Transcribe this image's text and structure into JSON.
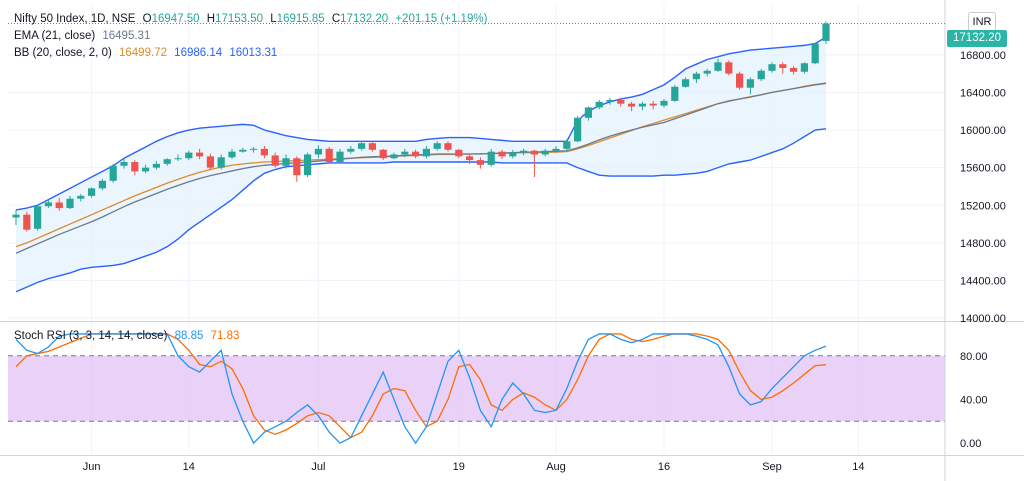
{
  "legend": {
    "symbol": "Nifty 50 Index, 1D, NSE",
    "open_label": "O",
    "open": "16947.50",
    "high_label": "H",
    "high": "17153.50",
    "low_label": "L",
    "low": "16915.85",
    "close_label": "C",
    "close": "17132.20",
    "change": "+201.15 (+1.19%)",
    "ema_label": "EMA (21, close)",
    "ema_value": "16495.31",
    "bb_label": "BB (20, close, 2, 0)",
    "bb_basis": "16499.72",
    "bb_upper": "16986.14",
    "bb_lower": "16013.31",
    "stoch_label": "Stoch RSI (3, 3, 14, 14, close)",
    "stoch_k": "88.85",
    "stoch_d": "71.83"
  },
  "currency": "INR",
  "last_price_tag": "17132.20",
  "colors": {
    "up": "#26a69a",
    "down": "#ef5350",
    "ema": "#6b7a8f",
    "bb_basis": "#e08a2c",
    "bb_bands": "#2962ff",
    "bb_fill": "#e3f2fd",
    "stoch_k": "#2196f3",
    "stoch_d": "#ff6d00",
    "stoch_band": "#e1c1f5"
  },
  "chart_data": [
    {
      "type": "candlestick",
      "title": "Nifty 50 Index, 1D, NSE",
      "x_ticks": [
        {
          "label": "Jun",
          "t": 7
        },
        {
          "label": "14",
          "t": 16
        },
        {
          "label": "Jul",
          "t": 28
        },
        {
          "label": "19",
          "t": 41
        },
        {
          "label": "Aug",
          "t": 50
        },
        {
          "label": "16",
          "t": 60
        },
        {
          "label": "Sep",
          "t": 70
        },
        {
          "label": "14",
          "t": 78
        }
      ],
      "y_ticks": [
        "14000.00",
        "14400.00",
        "14800.00",
        "15200.00",
        "15600.00",
        "16000.00",
        "16400.00",
        "16800.00"
      ],
      "ylim": [
        13980,
        17340
      ],
      "candles": [
        [
          15070,
          15150,
          14990,
          15100
        ],
        [
          15100,
          15130,
          14920,
          14940
        ],
        [
          14950,
          15210,
          14930,
          15190
        ],
        [
          15190,
          15260,
          15170,
          15230
        ],
        [
          15230,
          15280,
          15140,
          15170
        ],
        [
          15170,
          15300,
          15160,
          15270
        ],
        [
          15270,
          15320,
          15240,
          15300
        ],
        [
          15300,
          15390,
          15280,
          15380
        ],
        [
          15380,
          15480,
          15360,
          15460
        ],
        [
          15460,
          15640,
          15440,
          15620
        ],
        [
          15620,
          15700,
          15590,
          15660
        ],
        [
          15660,
          15680,
          15520,
          15560
        ],
        [
          15560,
          15630,
          15540,
          15600
        ],
        [
          15600,
          15670,
          15580,
          15640
        ],
        [
          15640,
          15700,
          15620,
          15690
        ],
        [
          15690,
          15740,
          15670,
          15700
        ],
        [
          15700,
          15780,
          15680,
          15760
        ],
        [
          15760,
          15800,
          15690,
          15720
        ],
        [
          15720,
          15750,
          15580,
          15600
        ],
        [
          15600,
          15740,
          15580,
          15710
        ],
        [
          15710,
          15800,
          15690,
          15770
        ],
        [
          15770,
          15810,
          15760,
          15790
        ],
        [
          15790,
          15820,
          15760,
          15800
        ],
        [
          15800,
          15830,
          15700,
          15730
        ],
        [
          15730,
          15760,
          15600,
          15620
        ],
        [
          15620,
          15740,
          15590,
          15700
        ],
        [
          15700,
          15720,
          15450,
          15520
        ],
        [
          15520,
          15760,
          15500,
          15740
        ],
        [
          15740,
          15840,
          15700,
          15800
        ],
        [
          15800,
          15820,
          15640,
          15660
        ],
        [
          15660,
          15800,
          15640,
          15770
        ],
        [
          15770,
          15830,
          15750,
          15800
        ],
        [
          15800,
          15880,
          15780,
          15860
        ],
        [
          15860,
          15870,
          15770,
          15790
        ],
        [
          15790,
          15800,
          15680,
          15700
        ],
        [
          15700,
          15760,
          15690,
          15740
        ],
        [
          15740,
          15800,
          15710,
          15770
        ],
        [
          15770,
          15790,
          15700,
          15720
        ],
        [
          15720,
          15830,
          15700,
          15800
        ],
        [
          15800,
          15880,
          15780,
          15860
        ],
        [
          15860,
          15880,
          15770,
          15790
        ],
        [
          15790,
          15800,
          15700,
          15720
        ],
        [
          15720,
          15750,
          15640,
          15680
        ],
        [
          15680,
          15710,
          15590,
          15630
        ],
        [
          15630,
          15800,
          15610,
          15770
        ],
        [
          15770,
          15790,
          15690,
          15720
        ],
        [
          15720,
          15790,
          15700,
          15760
        ],
        [
          15760,
          15800,
          15730,
          15780
        ],
        [
          15780,
          15790,
          15500,
          15740
        ],
        [
          15740,
          15800,
          15720,
          15780
        ],
        [
          15780,
          15830,
          15760,
          15800
        ],
        [
          15800,
          15900,
          15780,
          15880
        ],
        [
          15880,
          16150,
          15870,
          16130
        ],
        [
          16130,
          16250,
          16100,
          16240
        ],
        [
          16240,
          16320,
          16220,
          16300
        ],
        [
          16300,
          16340,
          16270,
          16320
        ],
        [
          16320,
          16340,
          16250,
          16280
        ],
        [
          16280,
          16300,
          16200,
          16250
        ],
        [
          16250,
          16300,
          16210,
          16280
        ],
        [
          16280,
          16310,
          16220,
          16260
        ],
        [
          16260,
          16330,
          16240,
          16310
        ],
        [
          16310,
          16480,
          16300,
          16460
        ],
        [
          16460,
          16560,
          16450,
          16540
        ],
        [
          16540,
          16620,
          16500,
          16600
        ],
        [
          16600,
          16650,
          16570,
          16630
        ],
        [
          16630,
          16760,
          16620,
          16720
        ],
        [
          16720,
          16740,
          16580,
          16600
        ],
        [
          16600,
          16620,
          16430,
          16450
        ],
        [
          16450,
          16560,
          16380,
          16540
        ],
        [
          16540,
          16650,
          16520,
          16630
        ],
        [
          16630,
          16720,
          16610,
          16700
        ],
        [
          16700,
          16720,
          16600,
          16660
        ],
        [
          16660,
          16680,
          16590,
          16620
        ],
        [
          16620,
          16720,
          16600,
          16710
        ],
        [
          16710,
          16930,
          16700,
          16920
        ],
        [
          16947.5,
          17153.5,
          16915.85,
          17132.2
        ]
      ],
      "ema": [
        14690,
        14740,
        14790,
        14840,
        14890,
        14935,
        14980,
        15025,
        15075,
        15130,
        15185,
        15235,
        15280,
        15325,
        15370,
        15410,
        15450,
        15485,
        15515,
        15540,
        15565,
        15590,
        15610,
        15625,
        15635,
        15645,
        15650,
        15660,
        15670,
        15680,
        15690,
        15700,
        15710,
        15715,
        15720,
        15725,
        15730,
        15735,
        15740,
        15745,
        15745,
        15745,
        15745,
        15745,
        15750,
        15755,
        15760,
        15765,
        15765,
        15770,
        15775,
        15780,
        15810,
        15850,
        15895,
        15935,
        15970,
        16000,
        16030,
        16055,
        16080,
        16120,
        16160,
        16200,
        16240,
        16280,
        16310,
        16330,
        16350,
        16375,
        16400,
        16420,
        16440,
        16460,
        16480,
        16495.31
      ],
      "bb_basis": [
        14760,
        14800,
        14850,
        14900,
        14950,
        15000,
        15050,
        15100,
        15150,
        15200,
        15250,
        15300,
        15345,
        15390,
        15435,
        15475,
        15515,
        15550,
        15580,
        15605,
        15625,
        15640,
        15650,
        15660,
        15665,
        15670,
        15675,
        15680,
        15685,
        15690,
        15695,
        15700,
        15705,
        15710,
        15715,
        15720,
        15725,
        15730,
        15735,
        15740,
        15740,
        15742,
        15745,
        15748,
        15750,
        15752,
        15755,
        15758,
        15760,
        15762,
        15765,
        15770,
        15800,
        15835,
        15875,
        15915,
        15955,
        15995,
        16035,
        16070,
        16105,
        16140,
        16175,
        16210,
        16245,
        16280,
        16305,
        16330,
        16355,
        16375,
        16400,
        16420,
        16440,
        16465,
        16485,
        16499.72
      ],
      "bb_upper": [
        15150,
        15170,
        15200,
        15260,
        15320,
        15380,
        15440,
        15500,
        15560,
        15620,
        15700,
        15760,
        15820,
        15880,
        15930,
        15970,
        16000,
        16020,
        16030,
        16040,
        16050,
        16060,
        16050,
        16000,
        15970,
        15940,
        15920,
        15900,
        15890,
        15880,
        15880,
        15880,
        15880,
        15880,
        15880,
        15880,
        15880,
        15880,
        15900,
        15910,
        15920,
        15920,
        15920,
        15910,
        15900,
        15890,
        15880,
        15880,
        15880,
        15880,
        15880,
        15880,
        16100,
        16200,
        16260,
        16300,
        16330,
        16350,
        16380,
        16430,
        16480,
        16560,
        16650,
        16700,
        16750,
        16780,
        16810,
        16830,
        16850,
        16860,
        16870,
        16880,
        16890,
        16900,
        16920,
        16986.14
      ],
      "bb_lower": [
        14280,
        14330,
        14380,
        14420,
        14450,
        14480,
        14520,
        14540,
        14550,
        14560,
        14580,
        14620,
        14660,
        14700,
        14760,
        14840,
        14940,
        15020,
        15100,
        15180,
        15260,
        15360,
        15460,
        15540,
        15580,
        15610,
        15620,
        15630,
        15640,
        15650,
        15650,
        15650,
        15650,
        15650,
        15650,
        15660,
        15660,
        15660,
        15660,
        15660,
        15660,
        15660,
        15660,
        15660,
        15660,
        15650,
        15650,
        15650,
        15650,
        15650,
        15650,
        15650,
        15600,
        15560,
        15520,
        15510,
        15510,
        15510,
        15510,
        15510,
        15520,
        15520,
        15530,
        15540,
        15560,
        15600,
        15640,
        15660,
        15680,
        15720,
        15760,
        15800,
        15860,
        15930,
        16000,
        16013.31
      ]
    },
    {
      "type": "line",
      "title": "Stoch RSI (3, 3, 14, 14, close)",
      "y_ticks": [
        "0.00",
        "40.00",
        "80.00"
      ],
      "ylim": [
        -10,
        110
      ],
      "band": [
        20,
        80
      ],
      "series": [
        {
          "name": "K",
          "values": [
            95,
            85,
            82,
            88,
            98,
            100,
            100,
            100,
            100,
            100,
            100,
            100,
            100,
            100,
            100,
            80,
            70,
            65,
            75,
            85,
            45,
            20,
            0,
            10,
            15,
            20,
            28,
            35,
            25,
            10,
            0,
            5,
            25,
            45,
            65,
            40,
            15,
            0,
            15,
            45,
            75,
            85,
            60,
            30,
            15,
            40,
            55,
            45,
            30,
            28,
            30,
            50,
            75,
            95,
            100,
            100,
            95,
            92,
            95,
            100,
            100,
            100,
            100,
            98,
            95,
            90,
            70,
            45,
            35,
            38,
            50,
            60,
            70,
            80,
            85,
            88.85
          ]
        },
        {
          "name": "D",
          "values": [
            70,
            80,
            82,
            84,
            88,
            92,
            96,
            100,
            100,
            100,
            100,
            100,
            100,
            100,
            100,
            95,
            85,
            72,
            70,
            75,
            68,
            50,
            25,
            12,
            8,
            12,
            18,
            25,
            28,
            25,
            15,
            5,
            10,
            25,
            45,
            50,
            48,
            30,
            15,
            20,
            40,
            70,
            72,
            58,
            35,
            30,
            40,
            46,
            42,
            35,
            30,
            40,
            58,
            80,
            95,
            100,
            100,
            95,
            93,
            95,
            98,
            100,
            100,
            100,
            98,
            95,
            85,
            65,
            48,
            40,
            42,
            48,
            55,
            63,
            71,
            71.83
          ]
        }
      ]
    }
  ]
}
